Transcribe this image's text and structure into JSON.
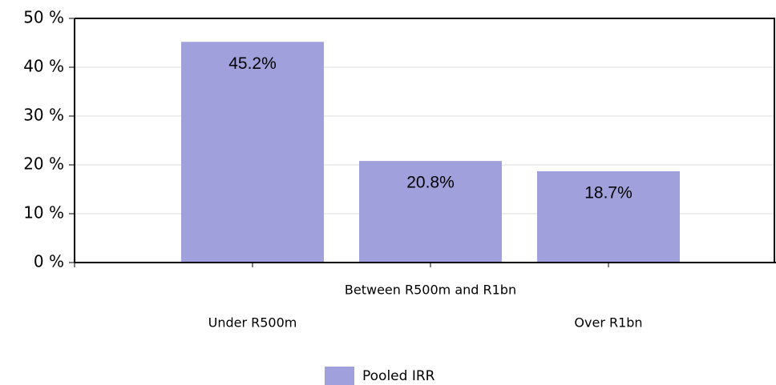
{
  "chart_data": {
    "type": "bar",
    "categories": [
      "Under R500m",
      "Between R500m and R1bn",
      "Over R1bn"
    ],
    "series": [
      {
        "name": "Pooled IRR",
        "color": "#a0a0dc",
        "values": [
          45.2,
          20.8,
          18.7
        ],
        "value_labels": [
          "45.2%",
          "20.8%",
          "18.7%"
        ]
      }
    ],
    "ylim": [
      0,
      50
    ],
    "yticks": [
      {
        "value": 0,
        "label": "0 %"
      },
      {
        "value": 10,
        "label": "10 %"
      },
      {
        "value": 20,
        "label": "20 %"
      },
      {
        "value": 30,
        "label": "30 %"
      },
      {
        "value": 40,
        "label": "40 %"
      },
      {
        "value": 50,
        "label": "50 %"
      }
    ],
    "grid": true,
    "legend": "bottom"
  }
}
